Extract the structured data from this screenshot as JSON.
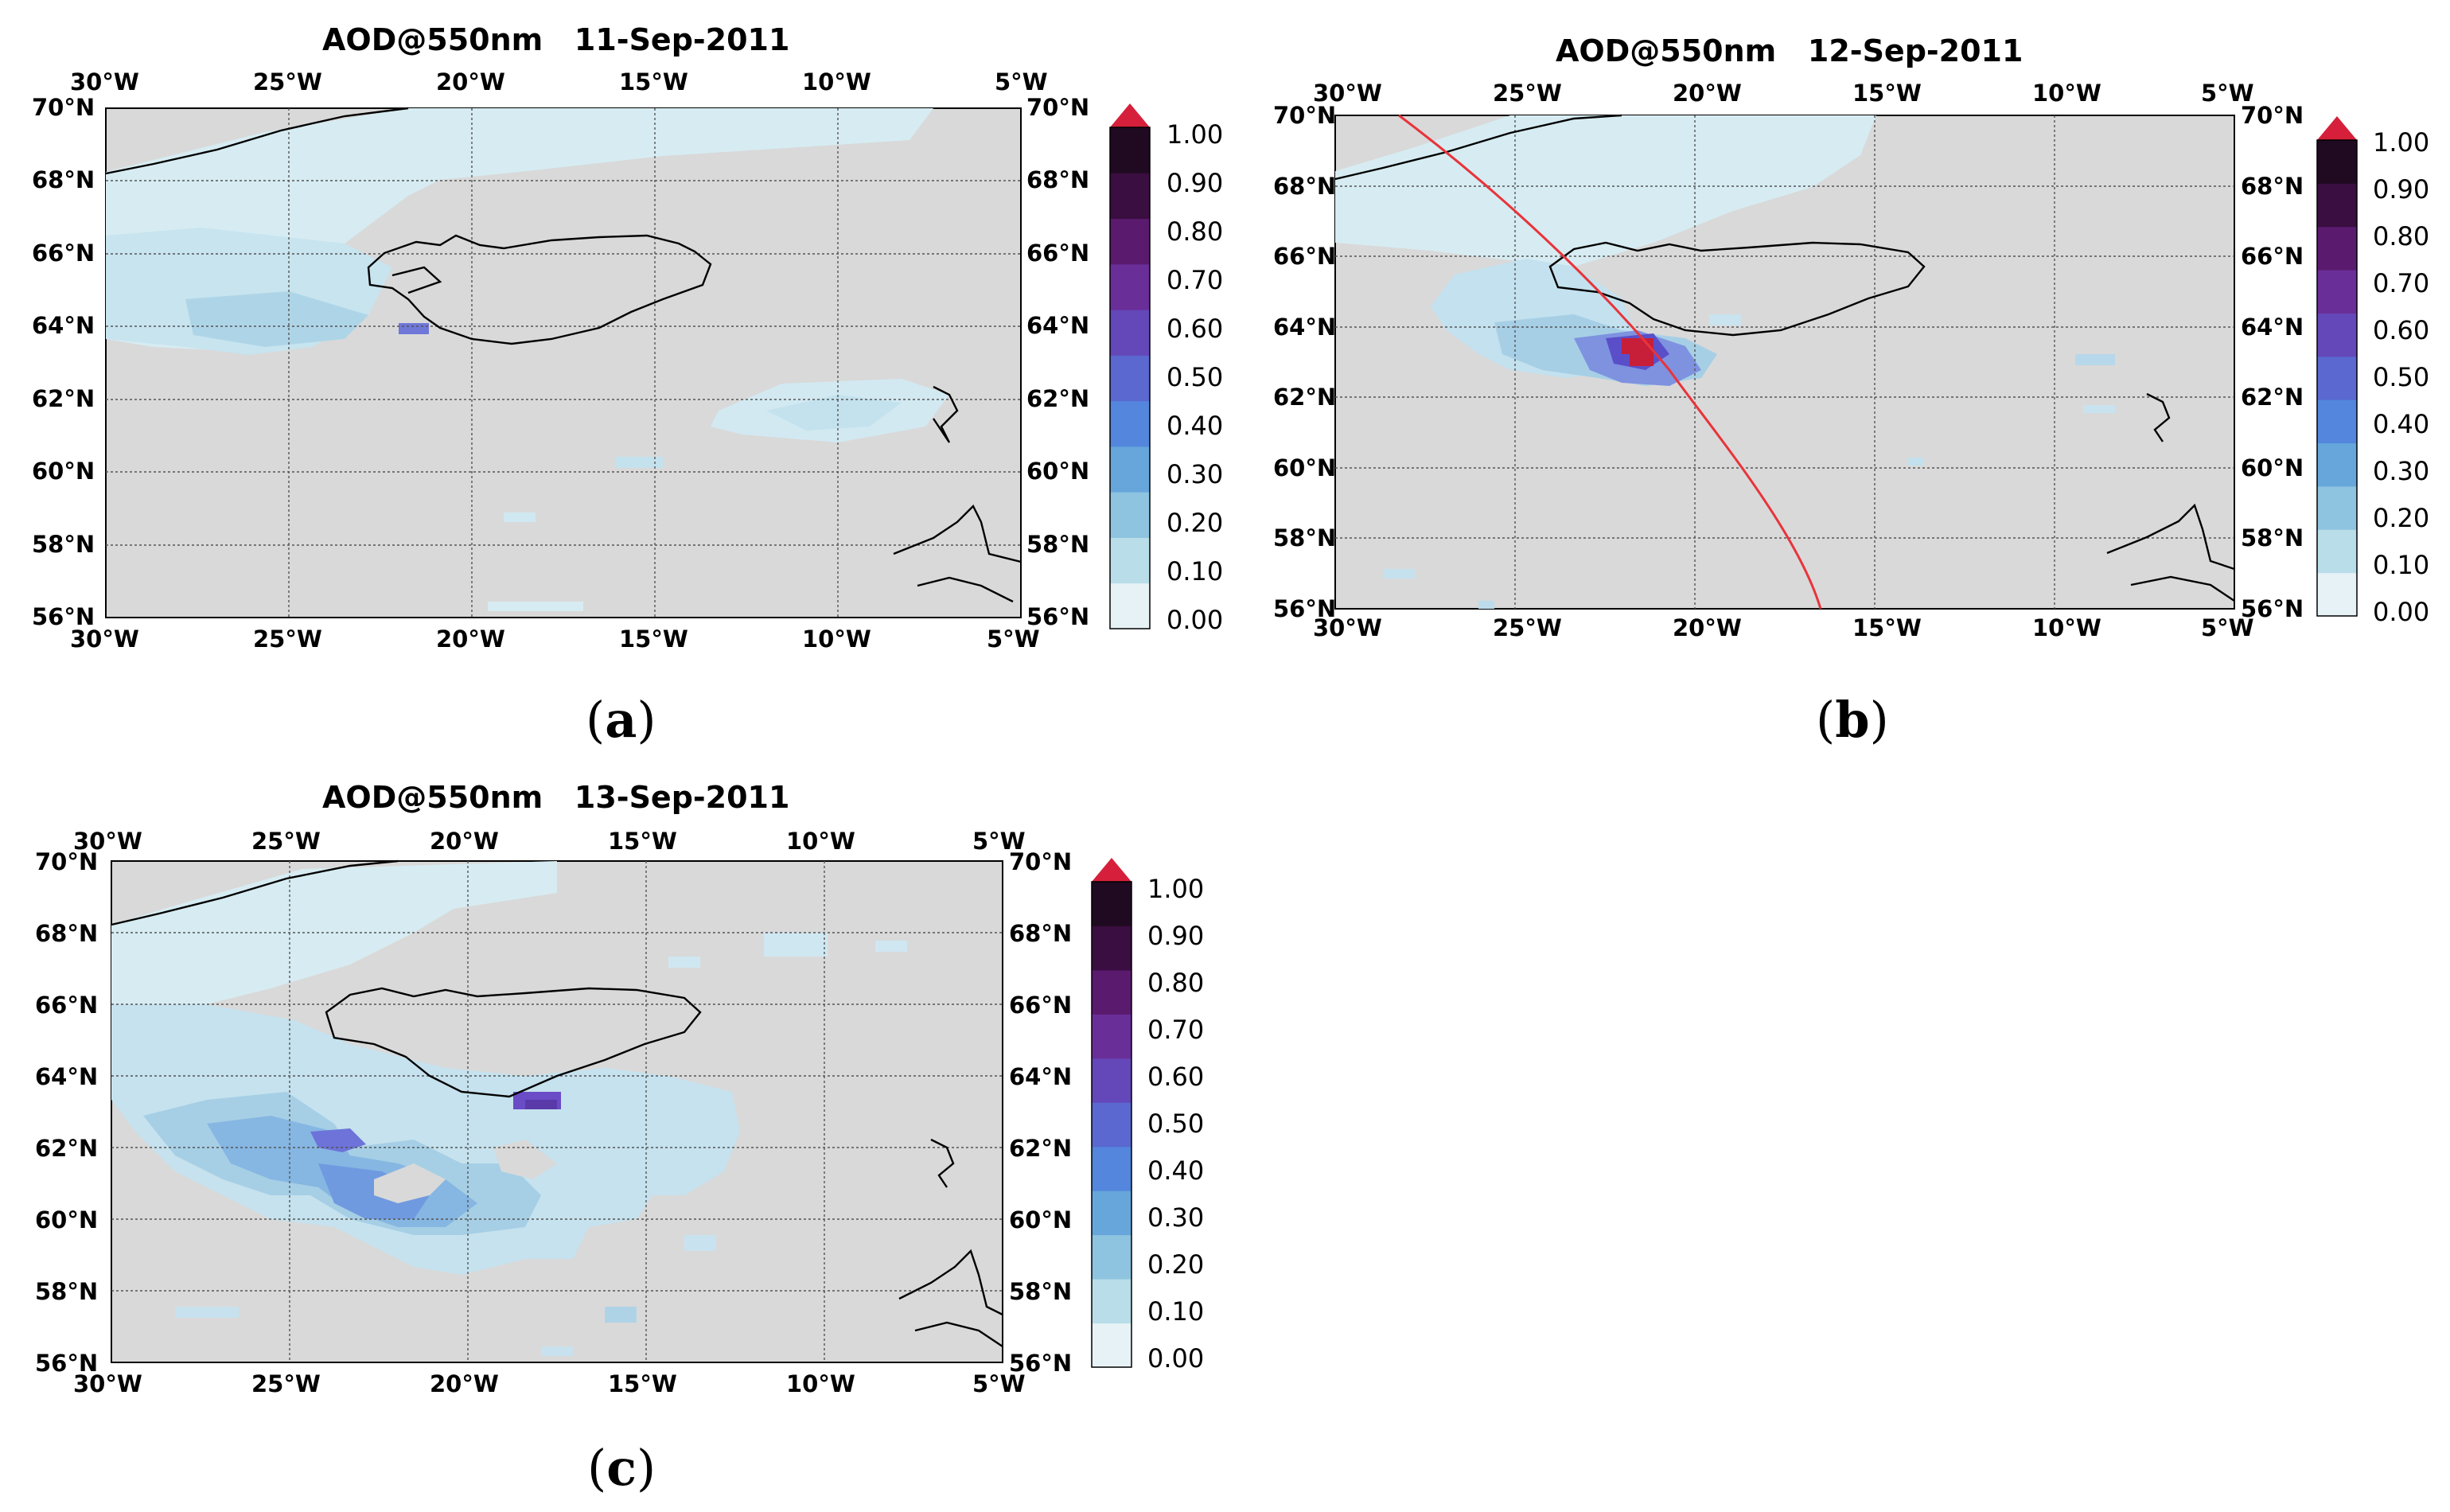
{
  "figure": {
    "panels": [
      {
        "id": "a",
        "title": "AOD@550nm   11-Sep-2011",
        "caption_letter": "a",
        "top_lon_labels": [
          "30°W",
          "25°W",
          "20°W",
          "15°W",
          "10°W",
          "5°W"
        ],
        "bottom_lon_labels": [
          "30°W",
          "25°W",
          "20°W",
          "15°W",
          "10°W",
          "5°W"
        ],
        "left_lat_labels": [
          "70°N",
          "68°N",
          "66°N",
          "64°N",
          "62°N",
          "60°N",
          "58°N",
          "56°N"
        ],
        "right_lat_labels": [
          "70°N",
          "68°N",
          "66°N",
          "64°N",
          "62°N",
          "60°N",
          "58°N",
          "56°N"
        ],
        "has_satellite_track": false
      },
      {
        "id": "b",
        "title": "AOD@550nm   12-Sep-2011",
        "caption_letter": "b",
        "top_lon_labels": [
          "30°W",
          "25°W",
          "20°W",
          "15°W",
          "10°W",
          "5°W"
        ],
        "bottom_lon_labels": [
          "30°W",
          "25°W",
          "20°W",
          "15°W",
          "10°W",
          "5°W"
        ],
        "left_lat_labels": [
          "70°N",
          "68°N",
          "66°N",
          "64°N",
          "62°N",
          "60°N",
          "58°N",
          "56°N"
        ],
        "right_lat_labels": [
          "70°N",
          "68°N",
          "66°N",
          "64°N",
          "62°N",
          "60°N",
          "58°N",
          "56°N"
        ],
        "has_satellite_track": true
      },
      {
        "id": "c",
        "title": "AOD@550nm   13-Sep-2011",
        "caption_letter": "c",
        "top_lon_labels": [
          "30°W",
          "25°W",
          "20°W",
          "15°W",
          "10°W",
          "5°W"
        ],
        "bottom_lon_labels": [
          "30°W",
          "25°W",
          "20°W",
          "15°W",
          "10°W",
          "5°W"
        ],
        "left_lat_labels": [
          "70°N",
          "68°N",
          "66°N",
          "64°N",
          "62°N",
          "60°N",
          "58°N",
          "56°N"
        ],
        "right_lat_labels": [
          "70°N",
          "68°N",
          "66°N",
          "64°N",
          "62°N",
          "60°N",
          "58°N",
          "56°N"
        ],
        "has_satellite_track": false
      }
    ],
    "colorbar": {
      "ticks": [
        "1.00",
        "0.90",
        "0.80",
        "0.70",
        "0.60",
        "0.50",
        "0.40",
        "0.30",
        "0.20",
        "0.10",
        "0.00"
      ],
      "extend_color": "#d6203b",
      "colors": [
        "#e6f2f5",
        "#b9dde9",
        "#8ec4e0",
        "#66a6db",
        "#5386dc",
        "#5a68d0",
        "#6447b8",
        "#6a2e98",
        "#5a1a6e",
        "#3a0e40",
        "#200a22"
      ]
    },
    "map_colors": {
      "background": "#d9d9d9",
      "aerosol_light": "#d6ecf2",
      "aerosol_mid": "#a9d3e6",
      "aerosol_blue": "#6f9fe0",
      "coastline": "#000000",
      "track": "#e8343b"
    }
  }
}
